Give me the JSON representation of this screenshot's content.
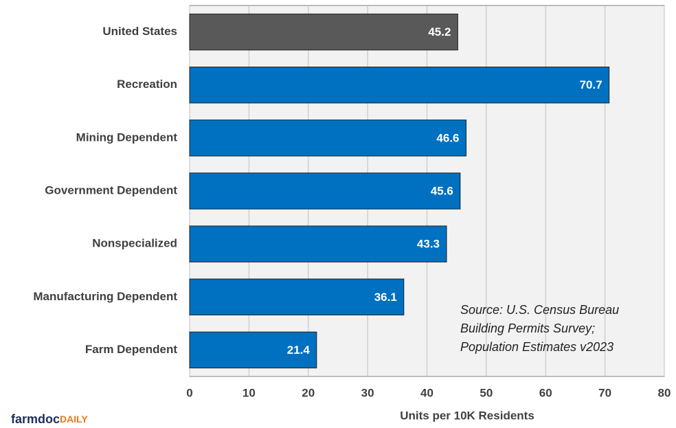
{
  "chart_data": {
    "type": "barh",
    "categories": [
      "United States",
      "Recreation",
      "Mining Dependent",
      "Government Dependent",
      "Nonspecialized",
      "Manufacturing Dependent",
      "Farm Dependent"
    ],
    "values": [
      45.2,
      70.7,
      46.6,
      45.6,
      43.3,
      36.1,
      21.4
    ],
    "colors": [
      "#595959",
      "#0070c0",
      "#0070c0",
      "#0070c0",
      "#0070c0",
      "#0070c0",
      "#0070c0"
    ],
    "xlabel": "Units per 10K Residents",
    "xlim": [
      0,
      80
    ],
    "xticks": [
      0,
      10,
      20,
      30,
      40,
      50,
      60,
      70,
      80
    ],
    "grid": true,
    "annotation": [
      "Source: U.S. Census Bureau",
      "Building Permits Survey;",
      "Population Estimates v2023"
    ],
    "logo": [
      "farmdoc",
      "DAILY"
    ]
  }
}
